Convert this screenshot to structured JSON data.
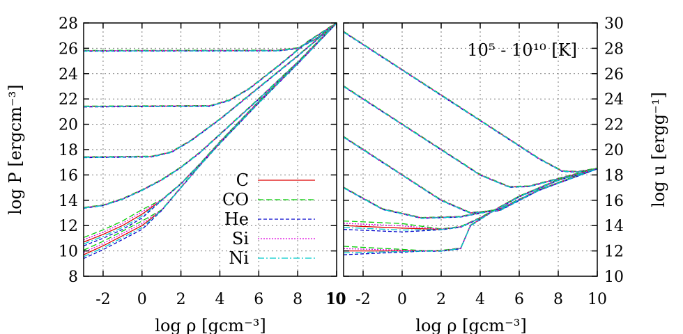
{
  "chart_data": [
    {
      "type": "line",
      "xlabel": "log ρ [gcm⁻³]",
      "ylabel": "log P [ergcm⁻³]",
      "xlim": [
        -3,
        10
      ],
      "ylim": [
        8,
        28
      ],
      "xticks": [
        "-2",
        "0",
        "2",
        "4",
        "6",
        "8",
        "10"
      ],
      "yticks": [
        "8",
        "10",
        "12",
        "14",
        "16",
        "18",
        "20",
        "22",
        "24",
        "26",
        "28"
      ],
      "grid": true,
      "legend": {
        "placement": "lower-right",
        "entries": [
          {
            "label": "C",
            "color": "#dd0000",
            "style": "solid"
          },
          {
            "label": "CO",
            "color": "#00cc00",
            "style": "dashed"
          },
          {
            "label": "He",
            "color": "#0000cc",
            "style": "dotted-dash"
          },
          {
            "label": "Si",
            "color": "#dd00dd",
            "style": "dotted"
          },
          {
            "label": "Ni",
            "color": "#00cccc",
            "style": "dashdot"
          }
        ]
      },
      "series": [
        {
          "points": [
            [
              -3,
              25.8
            ],
            [
              7,
              25.82
            ],
            [
              8,
              26.0
            ],
            [
              9,
              26.8
            ],
            [
              10,
              28.0
            ]
          ]
        },
        {
          "points": [
            [
              -3,
              21.4
            ],
            [
              3.5,
              21.45
            ],
            [
              4.5,
              21.9
            ],
            [
              5.5,
              22.8
            ],
            [
              7,
              24.6
            ],
            [
              8.5,
              26.5
            ],
            [
              10,
              28.0
            ]
          ]
        },
        {
          "points": [
            [
              -3,
              17.4
            ],
            [
              0.5,
              17.45
            ],
            [
              1.5,
              17.8
            ],
            [
              2.5,
              18.7
            ],
            [
              4,
              20.4
            ],
            [
              6,
              22.9
            ],
            [
              8,
              25.4
            ],
            [
              10,
              28.0
            ]
          ]
        },
        {
          "points": [
            [
              -3,
              13.4
            ],
            [
              -2,
              13.6
            ],
            [
              -1,
              14.1
            ],
            [
              0,
              14.8
            ],
            [
              1,
              15.6
            ],
            [
              2,
              16.6
            ],
            [
              3,
              17.8
            ],
            [
              4,
              19.2
            ],
            [
              6,
              22.0
            ],
            [
              8,
              24.9
            ],
            [
              10,
              28.0
            ]
          ]
        },
        {
          "points": [
            [
              -3,
              10.7
            ],
            [
              -2,
              11.3
            ],
            [
              -1,
              12.0
            ],
            [
              0,
              12.9
            ],
            [
              1,
              14.0
            ],
            [
              2,
              15.3
            ],
            [
              3,
              16.9
            ],
            [
              4,
              18.6
            ],
            [
              6,
              21.8
            ],
            [
              8,
              24.8
            ],
            [
              10,
              28.0
            ]
          ]
        },
        {
          "points": [
            [
              -3,
              9.7
            ],
            [
              -2,
              10.4
            ],
            [
              -1,
              11.2
            ],
            [
              0,
              12.0
            ],
            [
              1,
              13.2
            ],
            [
              2,
              15.0
            ],
            [
              3,
              16.8
            ],
            [
              4,
              18.5
            ],
            [
              6,
              21.7
            ],
            [
              8,
              24.8
            ],
            [
              10,
              28.0
            ]
          ]
        }
      ]
    },
    {
      "type": "line",
      "xlabel": "log ρ [gcm⁻³]",
      "ylabel": "log u [ergg⁻¹]",
      "annotation": "10⁵ - 10¹⁰ [K]",
      "xlim": [
        -3,
        10
      ],
      "ylim": [
        10,
        30
      ],
      "xticks": [
        "10",
        "-2",
        "0",
        "2",
        "4",
        "6",
        "8",
        "10"
      ],
      "yticks": [
        "10",
        "12",
        "14",
        "16",
        "18",
        "20",
        "22",
        "24",
        "26",
        "28",
        "30"
      ],
      "grid": true,
      "series": [
        {
          "points": [
            [
              -3,
              29.3
            ],
            [
              7,
              19.3
            ],
            [
              8.2,
              18.3
            ],
            [
              9,
              18.25
            ],
            [
              10,
              18.5
            ]
          ]
        },
        {
          "points": [
            [
              -3,
              25.0
            ],
            [
              4,
              18.0
            ],
            [
              5.5,
              17.05
            ],
            [
              6.5,
              17.1
            ],
            [
              8,
              17.7
            ],
            [
              10,
              18.5
            ]
          ]
        },
        {
          "points": [
            [
              -3,
              21.0
            ],
            [
              2,
              16.0
            ],
            [
              3.5,
              15.0
            ],
            [
              5,
              15.2
            ],
            [
              7,
              16.8
            ],
            [
              10,
              18.5
            ]
          ]
        },
        {
          "points": [
            [
              -3,
              17.0
            ],
            [
              -1,
              15.3
            ],
            [
              1,
              14.6
            ],
            [
              3,
              14.7
            ],
            [
              5,
              15.3
            ],
            [
              7,
              16.8
            ],
            [
              10,
              18.5
            ]
          ]
        },
        {
          "points": [
            [
              -3,
              14.0
            ],
            [
              0,
              13.8
            ],
            [
              2,
              13.7
            ],
            [
              3,
              13.9
            ],
            [
              4,
              14.6
            ],
            [
              6,
              16.3
            ],
            [
              8,
              17.6
            ],
            [
              10,
              18.5
            ]
          ]
        },
        {
          "points": [
            [
              -3,
              12.0
            ],
            [
              1,
              12.0
            ],
            [
              2,
              12.0
            ],
            [
              3,
              12.2
            ],
            [
              3.5,
              14.0
            ],
            [
              4.5,
              15.0
            ],
            [
              6,
              16.3
            ],
            [
              8,
              17.6
            ],
            [
              10,
              18.5
            ]
          ]
        }
      ]
    }
  ]
}
